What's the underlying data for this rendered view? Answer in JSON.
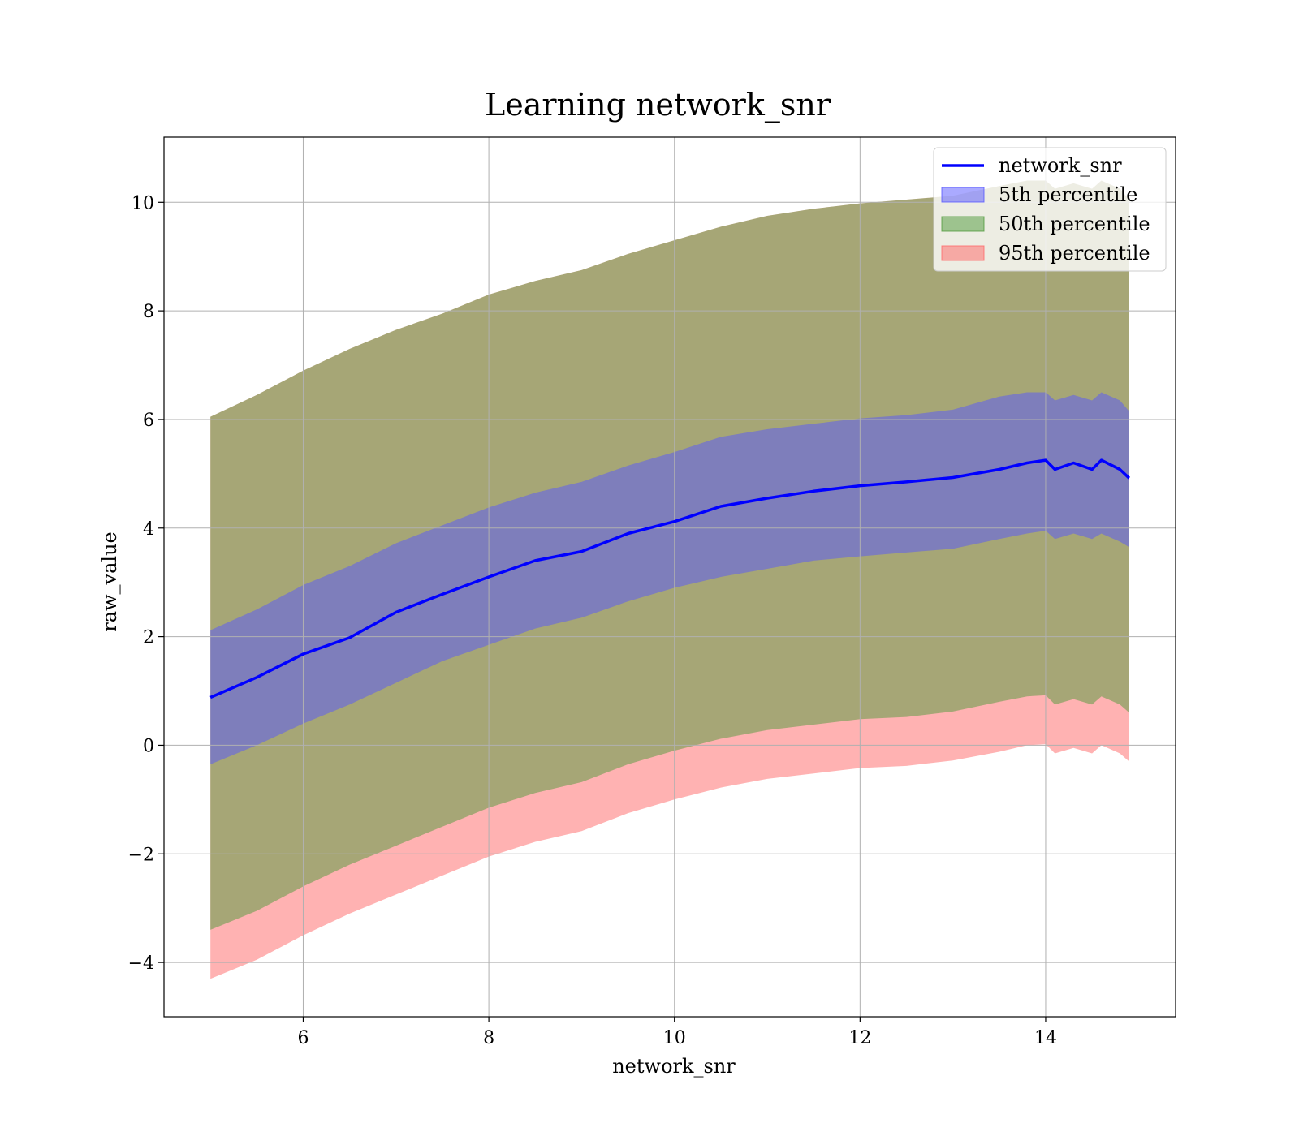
{
  "chart_data": {
    "type": "area",
    "title": "Learning network_snr",
    "xlabel": "network_snr",
    "ylabel": "raw_value",
    "xlim": [
      4.5,
      15.4
    ],
    "ylim": [
      -5.0,
      11.2
    ],
    "xticks": [
      6,
      8,
      10,
      12,
      14
    ],
    "yticks": [
      -4,
      -2,
      0,
      2,
      4,
      6,
      8,
      10
    ],
    "grid": true,
    "legend_position": "top-right",
    "x": [
      5.0,
      5.5,
      6.0,
      6.5,
      7.0,
      7.5,
      8.0,
      8.5,
      9.0,
      9.5,
      10.0,
      10.5,
      11.0,
      11.5,
      12.0,
      12.5,
      13.0,
      13.5,
      13.8,
      14.0,
      14.1,
      14.3,
      14.5,
      14.6,
      14.8,
      14.9
    ],
    "series": [
      {
        "name": "network_snr",
        "role": "line",
        "color": "#0000ff",
        "values": [
          0.88,
          1.25,
          1.68,
          1.98,
          2.45,
          2.78,
          3.1,
          3.4,
          3.57,
          3.9,
          4.12,
          4.4,
          4.55,
          4.68,
          4.78,
          4.85,
          4.93,
          5.08,
          5.2,
          5.25,
          5.08,
          5.2,
          5.08,
          5.25,
          5.08,
          4.92
        ]
      },
      {
        "name": "5th percentile",
        "role": "band",
        "color": "#5555ff",
        "lower": [
          -0.35,
          0.0,
          0.4,
          0.75,
          1.15,
          1.55,
          1.85,
          2.15,
          2.35,
          2.65,
          2.9,
          3.1,
          3.25,
          3.4,
          3.48,
          3.55,
          3.62,
          3.8,
          3.9,
          3.95,
          3.8,
          3.9,
          3.8,
          3.9,
          3.75,
          3.65
        ],
        "upper": [
          2.12,
          2.5,
          2.95,
          3.3,
          3.72,
          4.05,
          4.38,
          4.65,
          4.85,
          5.15,
          5.4,
          5.68,
          5.82,
          5.92,
          6.02,
          6.08,
          6.18,
          6.42,
          6.5,
          6.5,
          6.35,
          6.45,
          6.35,
          6.5,
          6.35,
          6.15
        ]
      },
      {
        "name": "50th percentile",
        "role": "band",
        "color": "#4d9a3a",
        "lower": [
          -3.4,
          -3.05,
          -2.6,
          -2.2,
          -1.85,
          -1.5,
          -1.15,
          -0.88,
          -0.68,
          -0.35,
          -0.1,
          0.12,
          0.28,
          0.38,
          0.48,
          0.52,
          0.62,
          0.8,
          0.9,
          0.92,
          0.75,
          0.85,
          0.75,
          0.9,
          0.75,
          0.6
        ]
      },
      {
        "name": "95th percentile",
        "role": "band",
        "color": "#ff6666",
        "lower": [
          -4.3,
          -3.95,
          -3.5,
          -3.1,
          -2.75,
          -2.4,
          -2.05,
          -1.78,
          -1.58,
          -1.25,
          -1.0,
          -0.78,
          -0.62,
          -0.52,
          -0.42,
          -0.38,
          -0.28,
          -0.12,
          0.0,
          0.02,
          -0.15,
          -0.05,
          -0.15,
          0.0,
          -0.15,
          -0.3
        ],
        "upper": [
          6.05,
          6.45,
          6.9,
          7.3,
          7.65,
          7.95,
          8.3,
          8.55,
          8.75,
          9.05,
          9.3,
          9.55,
          9.75,
          9.88,
          9.98,
          10.05,
          10.12,
          10.3,
          10.4,
          10.4,
          10.25,
          10.35,
          10.25,
          10.4,
          10.25,
          10.05
        ]
      }
    ]
  }
}
